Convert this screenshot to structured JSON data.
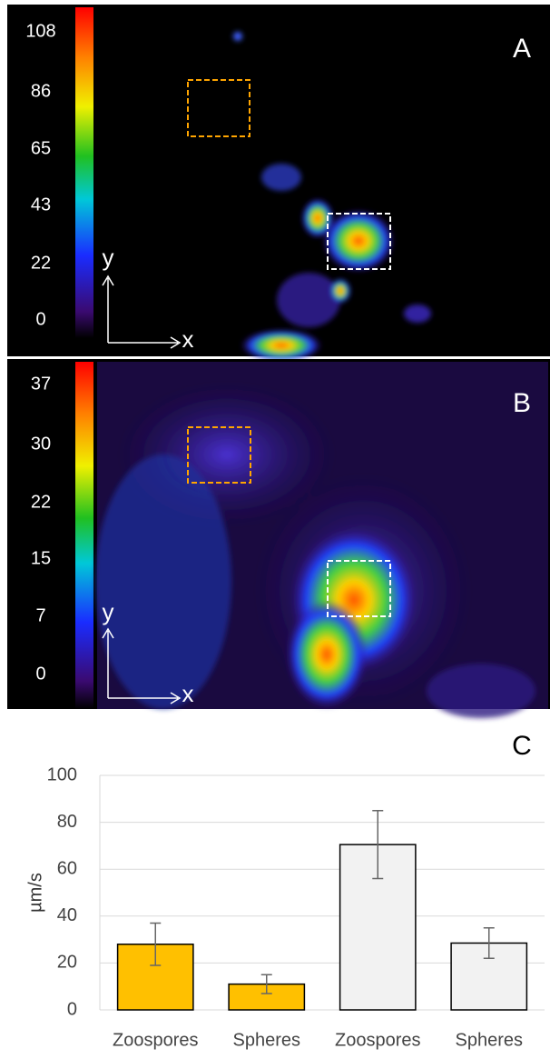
{
  "panels": [
    {
      "label": "A",
      "colorbar_ticks": [
        108,
        86,
        65,
        43,
        22,
        0
      ],
      "x_axis": "x",
      "y_axis": "y"
    },
    {
      "label": "B",
      "colorbar_ticks": [
        37,
        30,
        22,
        15,
        7,
        0
      ],
      "x_axis": "x",
      "y_axis": "y"
    }
  ],
  "chart_data": {
    "type": "bar",
    "label": "C",
    "y_label": "µm/s",
    "categories": [
      "Zoospores",
      "Spheres",
      "Zoospores",
      "Spheres"
    ],
    "values": [
      28,
      11,
      70.5,
      28.5
    ],
    "errors": [
      9,
      4,
      14.5,
      6.5
    ],
    "colors": [
      "#ffc000",
      "#ffc000",
      "#f2f2f2",
      "#f2f2f2"
    ],
    "ylim": [
      0,
      100
    ],
    "yticks": [
      0,
      20,
      40,
      60,
      80,
      100
    ],
    "grid": true
  }
}
